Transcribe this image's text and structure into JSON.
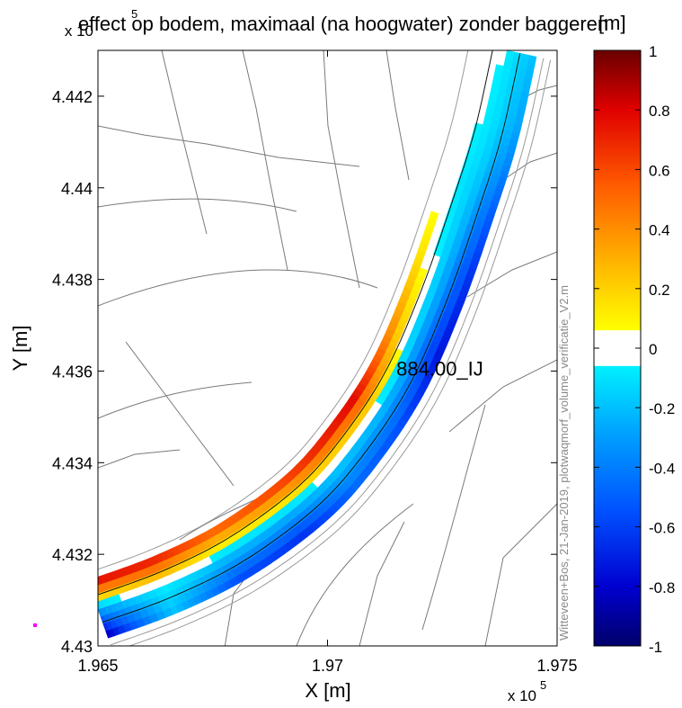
{
  "chart_data": {
    "type": "heatmap",
    "title": "effect op bodem, maximaal (na hoogwater) zonder baggeren",
    "xlabel": "X [m]",
    "ylabel": "Y [m]",
    "xlim": [
      196500,
      197500
    ],
    "ylim": [
      443000,
      444300
    ],
    "x_ticks": [
      "1.965",
      "1.97",
      "1.975"
    ],
    "y_ticks": [
      "4.43",
      "4.432",
      "4.434",
      "4.436",
      "4.438",
      "4.44",
      "4.442"
    ],
    "x_exponent": "x 10",
    "x_exponent_power": "5",
    "y_exponent": "x 10",
    "y_exponent_power": "5",
    "annotation": "884.00_IJ",
    "annotation_position": [
      197150,
      443590
    ],
    "watermark": "Witteveen+Bos, 21-Jan-2019, plotwaqmorf_volume_verificatie_V2.m",
    "river_centerline": [
      [
        196500,
        443080
      ],
      [
        196650,
        443135
      ],
      [
        196800,
        443210
      ],
      [
        196950,
        443320
      ],
      [
        197050,
        443430
      ],
      [
        197150,
        443580
      ],
      [
        197230,
        443760
      ],
      [
        197300,
        443960
      ],
      [
        197350,
        444120
      ],
      [
        197390,
        444300
      ]
    ],
    "channel_values": [
      {
        "s": 0.0,
        "left": -0.9,
        "right": 0.9
      },
      {
        "s": 0.1,
        "left": -0.2,
        "right": 0.8
      },
      {
        "s": 0.2,
        "left": -0.6,
        "right": 0.6
      },
      {
        "s": 0.3,
        "left": -0.7,
        "right": 0.7
      },
      {
        "s": 0.4,
        "left": -0.5,
        "right": 0.8
      },
      {
        "s": 0.5,
        "left": -0.6,
        "right": 0.9
      },
      {
        "s": 0.6,
        "left": -0.8,
        "right": 0.5
      },
      {
        "s": 0.7,
        "left": -0.7,
        "right": 0.2
      },
      {
        "s": 0.8,
        "left": -0.5,
        "right": 0.0
      },
      {
        "s": 0.9,
        "left": -0.3,
        "right": 0.0
      },
      {
        "s": 1.0,
        "left": -0.2,
        "right": 0.0
      }
    ],
    "colorbar": {
      "label": "[m]",
      "range": [
        -1,
        1
      ],
      "white_band": [
        -0.06,
        0.06
      ],
      "ticks": [
        "1",
        "0.8",
        "0.6",
        "0.4",
        "0.2",
        "0",
        "-0.2",
        "-0.4",
        "-0.6",
        "-0.8",
        "-1"
      ],
      "stops": [
        {
          "v": -1.0,
          "color": "#00006a"
        },
        {
          "v": -0.8,
          "color": "#0000d0"
        },
        {
          "v": -0.55,
          "color": "#0050ff"
        },
        {
          "v": -0.3,
          "color": "#009dff"
        },
        {
          "v": -0.06,
          "color": "#00f0ff"
        },
        {
          "v": 0.06,
          "color": "#ffff00"
        },
        {
          "v": 0.3,
          "color": "#ffb000"
        },
        {
          "v": 0.55,
          "color": "#ff5a00"
        },
        {
          "v": 0.8,
          "color": "#e00000"
        },
        {
          "v": 1.0,
          "color": "#6a0000"
        }
      ]
    },
    "grid": false
  },
  "colors": {
    "background": "#ffffff",
    "map_lines": "#7a7a7a",
    "axis": "#000000",
    "marker": "#ff00ff"
  }
}
